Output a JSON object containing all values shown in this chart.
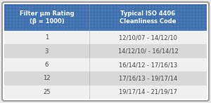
{
  "col1_header": "Filter μm Rating\n(β = 1000)",
  "col2_header": "Typical ISO 4406\nCleanliness Code",
  "rows": [
    [
      "1",
      "12/10/07 - 14/12/10"
    ],
    [
      "3",
      "14/12/10/ - 16/14/12"
    ],
    [
      "6",
      "16/14/12 - 17/16/13"
    ],
    [
      "12",
      "17/16/13 - 19/17/14"
    ],
    [
      "25",
      "19/17/14 - 21/19/17"
    ]
  ],
  "header_bg": "#4a7cb8",
  "row_bg_light": "#f0f0f0",
  "row_bg_dark": "#d8d8d8",
  "header_text_color": "#ffffff",
  "row_text_color": "#444444",
  "outer_bg": "#e0e0e0",
  "border_color": "#a0a0a0",
  "fig_bg": "#e8e8e8"
}
